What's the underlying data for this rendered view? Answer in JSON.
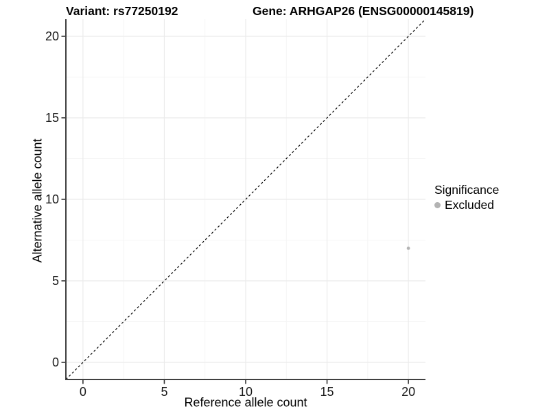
{
  "header": {
    "variant_title": "Variant: rs77250192",
    "gene_title": "Gene: ARHGAP26 (ENSG00000145819)"
  },
  "chart_data": {
    "type": "scatter",
    "title": "Variant: rs77250192   Gene: ARHGAP26 (ENSG00000145819)",
    "xlabel": "Reference allele count",
    "ylabel": "Alternative allele count",
    "xlim": [
      -1.05,
      21.05
    ],
    "ylim": [
      -1.05,
      21.05
    ],
    "xticks": [
      0,
      5,
      10,
      15,
      20
    ],
    "yticks": [
      0,
      5,
      10,
      15,
      20
    ],
    "minor_xticks": [
      2.5,
      7.5,
      12.5,
      17.5
    ],
    "minor_yticks": [
      2.5,
      7.5,
      12.5,
      17.5
    ],
    "grid": {
      "visible": true,
      "major_color": "#ebebeb",
      "minor_color": "#f5f5f5"
    },
    "reference_line": {
      "equation": "y = x",
      "style": "dashed",
      "color": "#000000"
    },
    "series": [
      {
        "name": "Excluded",
        "color": "#b3b3b3",
        "points": [
          {
            "x": 20,
            "y": 7
          }
        ]
      }
    ],
    "legend": {
      "title": "Significance",
      "position": "right",
      "items": [
        {
          "label": "Excluded",
          "color": "#b3b3b3"
        }
      ]
    }
  },
  "colors": {
    "background": "#ffffff",
    "axis_line": "#404040",
    "tick_mark": "#333333",
    "tick_label": "#1a1a1a",
    "title_text": "#000000"
  }
}
